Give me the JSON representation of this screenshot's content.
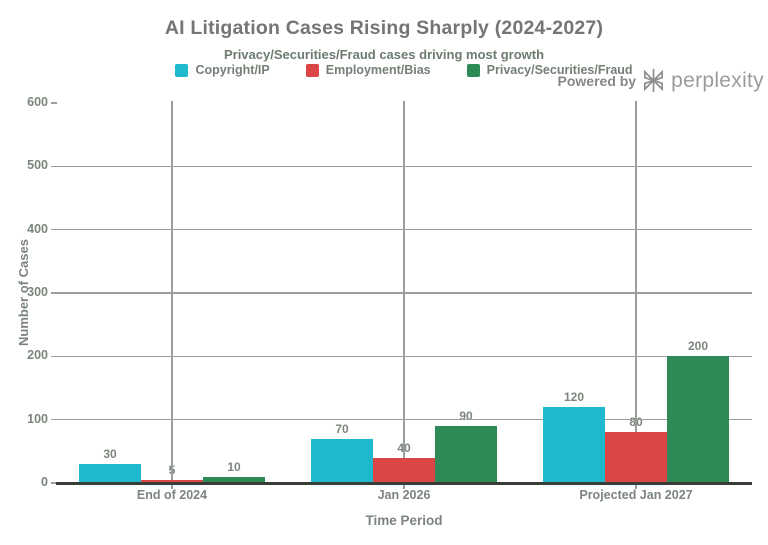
{
  "title": "AI Litigation Cases Rising Sharply (2024-2027)",
  "subtitle": "Privacy/Securities/Fraud cases driving most growth",
  "watermark": {
    "prefix": "Powered by",
    "brand": "perplexity"
  },
  "colors": {
    "background": "#ffffff",
    "grid": "#9b9f9b",
    "axis_line": "#383d38",
    "title_text": "#757575",
    "subtitle_text": "#6d7b6e",
    "tick_text": "#7b857c",
    "series_cyan": "#1FB8CD",
    "series_red": "#DB4545",
    "series_green": "#2E8B57"
  },
  "chart_data": {
    "type": "bar",
    "categories": [
      "End of 2024",
      "Jan 2026",
      "Projected Jan 2027"
    ],
    "series": [
      {
        "name": "Copyright/IP",
        "color": "#1FB8CD",
        "values": [
          30,
          70,
          120
        ]
      },
      {
        "name": "Employment/Bias",
        "color": "#DB4545",
        "values": [
          5,
          40,
          80
        ]
      },
      {
        "name": "Privacy/Securities/Fraud",
        "color": "#2E8B57",
        "values": [
          10,
          90,
          200
        ]
      }
    ],
    "title": "AI Litigation Cases Rising Sharply (2024-2027)",
    "subtitle": "Privacy/Securities/Fraud cases driving most growth",
    "xlabel": "Time Period",
    "ylabel": "Number of Cases",
    "ylim": [
      0,
      600
    ],
    "yticks": [
      0,
      100,
      200,
      300,
      400,
      500,
      600
    ],
    "grid": true,
    "legend_position": "top-center",
    "bar_value_labels": true
  }
}
